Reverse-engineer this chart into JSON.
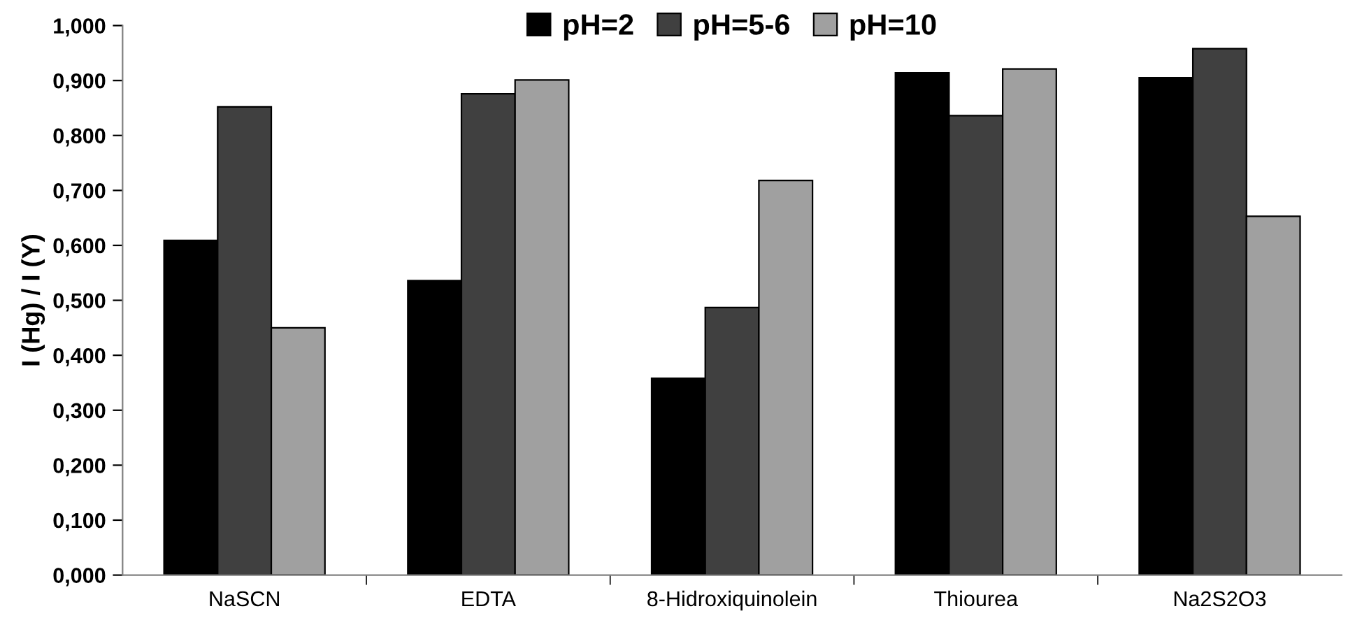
{
  "chart_data": {
    "type": "bar",
    "ylabel": "I (Hg) / I (Y)",
    "categories": [
      "NaSCN",
      "EDTA",
      "8-Hidroxiquinolein",
      "Thiourea",
      "Na2S2O3"
    ],
    "series": [
      {
        "name": "pH=2",
        "color": "#000000",
        "values": [
          0.609,
          0.536,
          0.358,
          0.914,
          0.905
        ]
      },
      {
        "name": "pH=5-6",
        "color": "#404040",
        "values": [
          0.852,
          0.876,
          0.487,
          0.836,
          0.958
        ]
      },
      {
        "name": "pH=10",
        "color": "#a0a0a0",
        "values": [
          0.45,
          0.901,
          0.718,
          0.921,
          0.653
        ]
      }
    ],
    "ylim": [
      0,
      1
    ],
    "yticks": [
      {
        "value": 0,
        "label": "0,000"
      },
      {
        "value": 0.1,
        "label": "0,100"
      },
      {
        "value": 0.2,
        "label": "0,200"
      },
      {
        "value": 0.3,
        "label": "0,300"
      },
      {
        "value": 0.4,
        "label": "0,400"
      },
      {
        "value": 0.5,
        "label": "0,500"
      },
      {
        "value": 0.6,
        "label": "0,600"
      },
      {
        "value": 0.7,
        "label": "0,700"
      },
      {
        "value": 0.8,
        "label": "0,800"
      },
      {
        "value": 0.9,
        "label": "0,900"
      },
      {
        "value": 1,
        "label": "1,000"
      }
    ],
    "grid": false,
    "legend": "top"
  }
}
